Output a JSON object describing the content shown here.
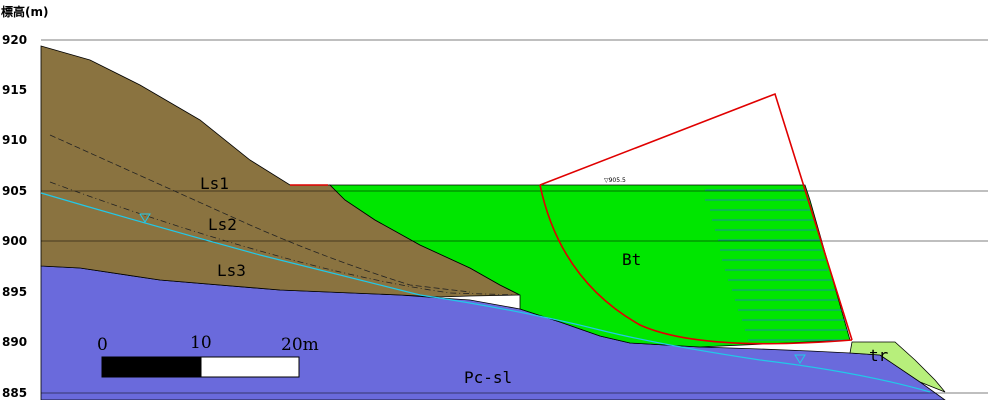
{
  "axis": {
    "unit_label": "標高(m)",
    "ticks": [
      "920",
      "915",
      "910",
      "905",
      "900",
      "895",
      "890",
      "885"
    ]
  },
  "layers": {
    "ls1": "Ls1",
    "ls2": "Ls2",
    "ls3": "Ls3",
    "bt": "Bt",
    "pc": "Pc-sl",
    "tr": "tr"
  },
  "water_level_label": "▽905.5",
  "scale_bar": {
    "labels": [
      "0",
      "10",
      "20m"
    ]
  },
  "colors": {
    "landslide": "#8a7340",
    "bedrock": "#6a6adc",
    "embankment": "#00e600",
    "terrace": "#b7ef7b",
    "slip_circle": "#e00000",
    "groundwater": "#22c8e8"
  }
}
